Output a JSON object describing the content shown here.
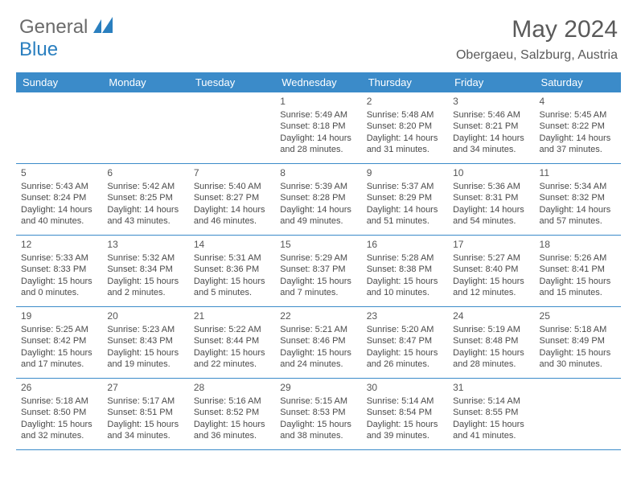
{
  "brand": {
    "text_general": "General",
    "text_blue": "Blue"
  },
  "title": {
    "month": "May 2024",
    "location": "Obergaeu, Salzburg, Austria"
  },
  "colors": {
    "header_bg": "#3b8bc9",
    "header_text": "#ffffff",
    "grid_line": "#3b8bc9",
    "body_text": "#4a4a4a"
  },
  "daynames": [
    "Sunday",
    "Monday",
    "Tuesday",
    "Wednesday",
    "Thursday",
    "Friday",
    "Saturday"
  ],
  "weeks": [
    [
      {
        "day": "",
        "sunrise": "",
        "sunset": "",
        "daylight1": "",
        "daylight2": ""
      },
      {
        "day": "",
        "sunrise": "",
        "sunset": "",
        "daylight1": "",
        "daylight2": ""
      },
      {
        "day": "",
        "sunrise": "",
        "sunset": "",
        "daylight1": "",
        "daylight2": ""
      },
      {
        "day": "1",
        "sunrise": "Sunrise: 5:49 AM",
        "sunset": "Sunset: 8:18 PM",
        "daylight1": "Daylight: 14 hours",
        "daylight2": "and 28 minutes."
      },
      {
        "day": "2",
        "sunrise": "Sunrise: 5:48 AM",
        "sunset": "Sunset: 8:20 PM",
        "daylight1": "Daylight: 14 hours",
        "daylight2": "and 31 minutes."
      },
      {
        "day": "3",
        "sunrise": "Sunrise: 5:46 AM",
        "sunset": "Sunset: 8:21 PM",
        "daylight1": "Daylight: 14 hours",
        "daylight2": "and 34 minutes."
      },
      {
        "day": "4",
        "sunrise": "Sunrise: 5:45 AM",
        "sunset": "Sunset: 8:22 PM",
        "daylight1": "Daylight: 14 hours",
        "daylight2": "and 37 minutes."
      }
    ],
    [
      {
        "day": "5",
        "sunrise": "Sunrise: 5:43 AM",
        "sunset": "Sunset: 8:24 PM",
        "daylight1": "Daylight: 14 hours",
        "daylight2": "and 40 minutes."
      },
      {
        "day": "6",
        "sunrise": "Sunrise: 5:42 AM",
        "sunset": "Sunset: 8:25 PM",
        "daylight1": "Daylight: 14 hours",
        "daylight2": "and 43 minutes."
      },
      {
        "day": "7",
        "sunrise": "Sunrise: 5:40 AM",
        "sunset": "Sunset: 8:27 PM",
        "daylight1": "Daylight: 14 hours",
        "daylight2": "and 46 minutes."
      },
      {
        "day": "8",
        "sunrise": "Sunrise: 5:39 AM",
        "sunset": "Sunset: 8:28 PM",
        "daylight1": "Daylight: 14 hours",
        "daylight2": "and 49 minutes."
      },
      {
        "day": "9",
        "sunrise": "Sunrise: 5:37 AM",
        "sunset": "Sunset: 8:29 PM",
        "daylight1": "Daylight: 14 hours",
        "daylight2": "and 51 minutes."
      },
      {
        "day": "10",
        "sunrise": "Sunrise: 5:36 AM",
        "sunset": "Sunset: 8:31 PM",
        "daylight1": "Daylight: 14 hours",
        "daylight2": "and 54 minutes."
      },
      {
        "day": "11",
        "sunrise": "Sunrise: 5:34 AM",
        "sunset": "Sunset: 8:32 PM",
        "daylight1": "Daylight: 14 hours",
        "daylight2": "and 57 minutes."
      }
    ],
    [
      {
        "day": "12",
        "sunrise": "Sunrise: 5:33 AM",
        "sunset": "Sunset: 8:33 PM",
        "daylight1": "Daylight: 15 hours",
        "daylight2": "and 0 minutes."
      },
      {
        "day": "13",
        "sunrise": "Sunrise: 5:32 AM",
        "sunset": "Sunset: 8:34 PM",
        "daylight1": "Daylight: 15 hours",
        "daylight2": "and 2 minutes."
      },
      {
        "day": "14",
        "sunrise": "Sunrise: 5:31 AM",
        "sunset": "Sunset: 8:36 PM",
        "daylight1": "Daylight: 15 hours",
        "daylight2": "and 5 minutes."
      },
      {
        "day": "15",
        "sunrise": "Sunrise: 5:29 AM",
        "sunset": "Sunset: 8:37 PM",
        "daylight1": "Daylight: 15 hours",
        "daylight2": "and 7 minutes."
      },
      {
        "day": "16",
        "sunrise": "Sunrise: 5:28 AM",
        "sunset": "Sunset: 8:38 PM",
        "daylight1": "Daylight: 15 hours",
        "daylight2": "and 10 minutes."
      },
      {
        "day": "17",
        "sunrise": "Sunrise: 5:27 AM",
        "sunset": "Sunset: 8:40 PM",
        "daylight1": "Daylight: 15 hours",
        "daylight2": "and 12 minutes."
      },
      {
        "day": "18",
        "sunrise": "Sunrise: 5:26 AM",
        "sunset": "Sunset: 8:41 PM",
        "daylight1": "Daylight: 15 hours",
        "daylight2": "and 15 minutes."
      }
    ],
    [
      {
        "day": "19",
        "sunrise": "Sunrise: 5:25 AM",
        "sunset": "Sunset: 8:42 PM",
        "daylight1": "Daylight: 15 hours",
        "daylight2": "and 17 minutes."
      },
      {
        "day": "20",
        "sunrise": "Sunrise: 5:23 AM",
        "sunset": "Sunset: 8:43 PM",
        "daylight1": "Daylight: 15 hours",
        "daylight2": "and 19 minutes."
      },
      {
        "day": "21",
        "sunrise": "Sunrise: 5:22 AM",
        "sunset": "Sunset: 8:44 PM",
        "daylight1": "Daylight: 15 hours",
        "daylight2": "and 22 minutes."
      },
      {
        "day": "22",
        "sunrise": "Sunrise: 5:21 AM",
        "sunset": "Sunset: 8:46 PM",
        "daylight1": "Daylight: 15 hours",
        "daylight2": "and 24 minutes."
      },
      {
        "day": "23",
        "sunrise": "Sunrise: 5:20 AM",
        "sunset": "Sunset: 8:47 PM",
        "daylight1": "Daylight: 15 hours",
        "daylight2": "and 26 minutes."
      },
      {
        "day": "24",
        "sunrise": "Sunrise: 5:19 AM",
        "sunset": "Sunset: 8:48 PM",
        "daylight1": "Daylight: 15 hours",
        "daylight2": "and 28 minutes."
      },
      {
        "day": "25",
        "sunrise": "Sunrise: 5:18 AM",
        "sunset": "Sunset: 8:49 PM",
        "daylight1": "Daylight: 15 hours",
        "daylight2": "and 30 minutes."
      }
    ],
    [
      {
        "day": "26",
        "sunrise": "Sunrise: 5:18 AM",
        "sunset": "Sunset: 8:50 PM",
        "daylight1": "Daylight: 15 hours",
        "daylight2": "and 32 minutes."
      },
      {
        "day": "27",
        "sunrise": "Sunrise: 5:17 AM",
        "sunset": "Sunset: 8:51 PM",
        "daylight1": "Daylight: 15 hours",
        "daylight2": "and 34 minutes."
      },
      {
        "day": "28",
        "sunrise": "Sunrise: 5:16 AM",
        "sunset": "Sunset: 8:52 PM",
        "daylight1": "Daylight: 15 hours",
        "daylight2": "and 36 minutes."
      },
      {
        "day": "29",
        "sunrise": "Sunrise: 5:15 AM",
        "sunset": "Sunset: 8:53 PM",
        "daylight1": "Daylight: 15 hours",
        "daylight2": "and 38 minutes."
      },
      {
        "day": "30",
        "sunrise": "Sunrise: 5:14 AM",
        "sunset": "Sunset: 8:54 PM",
        "daylight1": "Daylight: 15 hours",
        "daylight2": "and 39 minutes."
      },
      {
        "day": "31",
        "sunrise": "Sunrise: 5:14 AM",
        "sunset": "Sunset: 8:55 PM",
        "daylight1": "Daylight: 15 hours",
        "daylight2": "and 41 minutes."
      },
      {
        "day": "",
        "sunrise": "",
        "sunset": "",
        "daylight1": "",
        "daylight2": ""
      }
    ]
  ]
}
